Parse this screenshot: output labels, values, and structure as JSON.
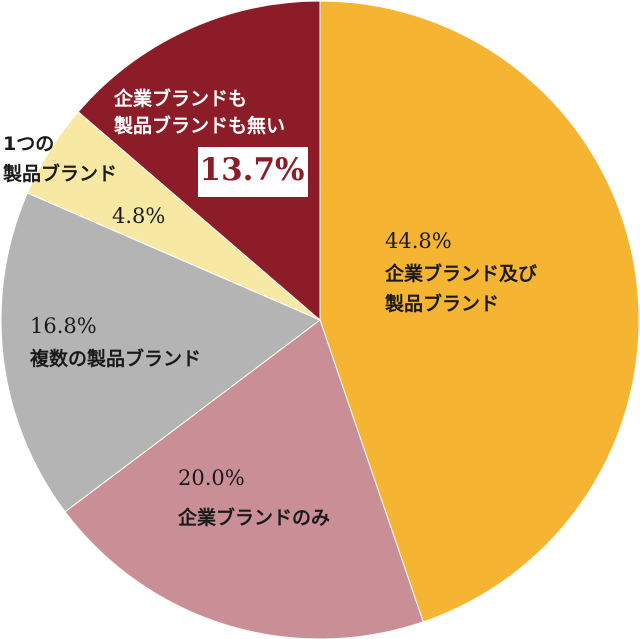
{
  "chart_data": {
    "type": "pie",
    "start": "12 o'clock",
    "direction": "clockwise",
    "slices": [
      {
        "label_lines": [
          "企業ブランド及び",
          "製品ブランド"
        ],
        "value": 44.8,
        "value_text": "44.8%",
        "color": "#f5b431"
      },
      {
        "label_lines": [
          "企業ブランドのみ"
        ],
        "value": 20.0,
        "value_text": "20.0%",
        "color": "#ca8e96"
      },
      {
        "label_lines": [
          "複数の製品ブランド"
        ],
        "value": 16.8,
        "value_text": "16.8%",
        "color": "#b4b4b4"
      },
      {
        "label_lines": [
          "1つの",
          "製品ブランド"
        ],
        "value": 4.8,
        "value_text": "4.8%",
        "color": "#f7e9a4"
      },
      {
        "label_lines": [
          "企業ブランドも",
          "製品ブランドも無い"
        ],
        "value": 13.7,
        "value_text": "13.7%",
        "color": "#8c1d28",
        "highlight": true
      }
    ]
  }
}
